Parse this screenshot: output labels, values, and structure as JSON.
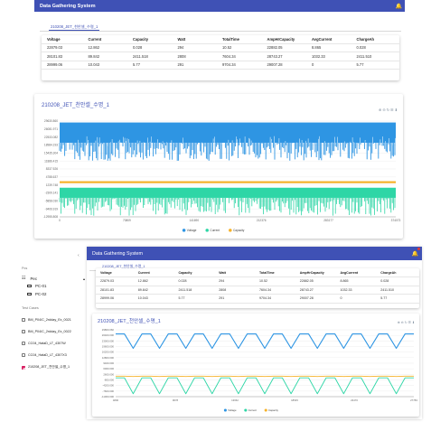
{
  "app": {
    "title": "Data Gathering System"
  },
  "tab_label": "210208_JET_천안셀_수명_1",
  "table": {
    "columns": [
      "Voltage",
      "Current",
      "Capacity",
      "Watt",
      "TotalTime",
      "AmpHrCapacity",
      "AvgCurrent",
      "ChargeAh"
    ],
    "rows": [
      [
        "22879.03",
        "12.862",
        "0.028",
        "294",
        "10.52",
        "22882.05",
        "8.865",
        "0.028"
      ],
      [
        "28101.83",
        "89.842",
        "2411.518",
        "2808",
        "7604.34",
        "28743.27",
        "1032.33",
        "2411.510"
      ],
      [
        "28999.06",
        "10.043",
        "5.77",
        "291",
        "9704.34",
        "29007.28",
        "0",
        "5.77"
      ]
    ]
  },
  "sidebar": {
    "section_pcs": "Pcs",
    "group_label": "Pec",
    "pcs": [
      "PC-01",
      "PC-02"
    ],
    "section_tests": "Test Cases",
    "tests": [
      {
        "label": "BM_P04/C_2rdday_Ex_0021",
        "checked": false
      },
      {
        "label": "BM_P04/C_2rdday_Ex_0022",
        "checked": false
      },
      {
        "label": "CC04_HataD_LT_4307W",
        "checked": false
      },
      {
        "label": "CC04_HataD_LT_4307X3",
        "checked": false
      },
      {
        "label": "210208_JET_천안셀_수명_1",
        "checked": true
      }
    ]
  },
  "legend": [
    "Voltage",
    "Current",
    "Capacity"
  ],
  "colors": {
    "voltage": "#2e95e3",
    "current": "#2ed6a6",
    "capacity": "#f6b22a",
    "brand": "#3f51b5",
    "tag": "#e53935"
  },
  "toolbox_icons": [
    "zoom-icon",
    "zoom-reset-icon",
    "restore-icon",
    "data-view-icon",
    "save-image-icon"
  ],
  "chart_data": [
    {
      "type": "line",
      "title": "210208_JET_천안셀_수명_1",
      "x_ticks": [
        "0",
        "70809",
        "141690",
        "212376",
        "283177",
        "374073"
      ],
      "y_ticks": [
        "29630.860",
        "26081.971",
        "22533.082",
        "18984.193",
        "15435.304",
        "11886.415",
        "8337.526",
        "4788.637",
        "1239.748",
        "-2309.141",
        "-5858.030",
        "-9406.919",
        "-12955.808"
      ],
      "y_range": [
        -12955.808,
        29630.86
      ],
      "legend_position": "bottom",
      "series": [
        {
          "name": "Voltage",
          "description_values": {
            "baseline": 29000,
            "typical_dips": [
              28000,
              20000,
              12000
            ]
          }
        },
        {
          "name": "Current",
          "description_values": {
            "baseline": -2000,
            "typical_dips": [
              -6000,
              -9000,
              -12000
            ]
          }
        },
        {
          "name": "Capacity",
          "description_values": {
            "baseline": 2500
          }
        }
      ]
    },
    {
      "type": "line",
      "title": "210208_JET_천안셀_수명_1",
      "x_ticks": [
        "4800",
        "9678",
        "13662",
        "18545",
        "23470",
        "27783"
      ],
      "y_ticks": [
        "29800.060",
        "26400.000",
        "23000.000",
        "19600.000",
        "16200.000",
        "12800.000",
        "9400.000",
        "6000.000",
        "2600.000",
        "-800.000",
        "-4200.000",
        "-7600.000",
        "-11000.000"
      ],
      "y_range": [
        -11000,
        29800.06
      ],
      "legend_position": "bottom",
      "series": [
        {
          "name": "Voltage",
          "values": [
            27300,
            27300,
            18500,
            27300,
            27300,
            18500,
            27300,
            27300,
            18500,
            27300,
            27300,
            18500,
            27300,
            27300,
            18500,
            27300,
            27300,
            18500,
            27300,
            27300,
            18500,
            27300,
            27300,
            18500,
            27300,
            27300,
            18500,
            27300,
            27300,
            18500,
            27300,
            27300,
            18500,
            27300,
            27300
          ]
        },
        {
          "name": "Current",
          "values": [
            500,
            500,
            -9200,
            500,
            500,
            -9200,
            500,
            500,
            -9200,
            500,
            500,
            -9200,
            500,
            500,
            -9200,
            500,
            500,
            -9200,
            500,
            500,
            -9200,
            500,
            500,
            -9200,
            500,
            500,
            -9200,
            500,
            500,
            -9200,
            500,
            500,
            -9200,
            500,
            500
          ]
        },
        {
          "name": "Capacity",
          "values": [
            1500,
            1500,
            1300,
            1500,
            1500,
            1300,
            1500,
            1500,
            1300,
            1500,
            1500,
            1300,
            1500,
            1500,
            1300,
            1500,
            1500,
            1300,
            1500,
            1500,
            1300,
            1500,
            1500,
            1300,
            1500,
            1500,
            1300,
            1500,
            1500,
            1300,
            1500,
            1500,
            1300,
            1500,
            1500
          ]
        }
      ]
    }
  ]
}
